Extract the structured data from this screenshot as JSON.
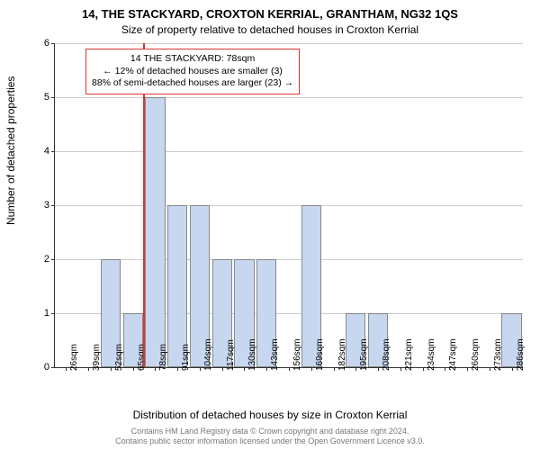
{
  "title_main": "14, THE STACKYARD, CROXTON KERRIAL, GRANTHAM, NG32 1QS",
  "title_sub": "Size of property relative to detached houses in Croxton Kerrial",
  "ylabel": "Number of detached properties",
  "xlabel": "Distribution of detached houses by size in Croxton Kerrial",
  "chart": {
    "type": "bar",
    "x_categories": [
      "26sqm",
      "39sqm",
      "52sqm",
      "65sqm",
      "78sqm",
      "91sqm",
      "104sqm",
      "117sqm",
      "130sqm",
      "143sqm",
      "156sqm",
      "169sqm",
      "182sqm",
      "195sqm",
      "208sqm",
      "221sqm",
      "234sqm",
      "247sqm",
      "260sqm",
      "273sqm",
      "286sqm"
    ],
    "values": [
      0,
      0,
      2,
      1,
      5,
      3,
      3,
      2,
      2,
      2,
      0,
      3,
      0,
      1,
      1,
      0,
      0,
      0,
      0,
      0,
      1
    ],
    "ylim": [
      0,
      6
    ],
    "ytick_step": 1,
    "bar_color": "#c7d7f0",
    "bar_border_color": "#888888",
    "grid_color": "#cccccc",
    "background_color": "#ffffff",
    "marker": {
      "x_index_between": [
        3,
        4
      ],
      "color": "#dd3333"
    }
  },
  "annotation": {
    "line1": "14 THE STACKYARD: 78sqm",
    "line2": "← 12% of detached houses are smaller (3)",
    "line3": "88% of semi-detached houses are larger (23) →",
    "border_color": "#dd3333"
  },
  "footer": {
    "line1": "Contains HM Land Registry data © Crown copyright and database right 2024.",
    "line2": "Contains public sector information licensed under the Open Government Licence v3.0."
  }
}
